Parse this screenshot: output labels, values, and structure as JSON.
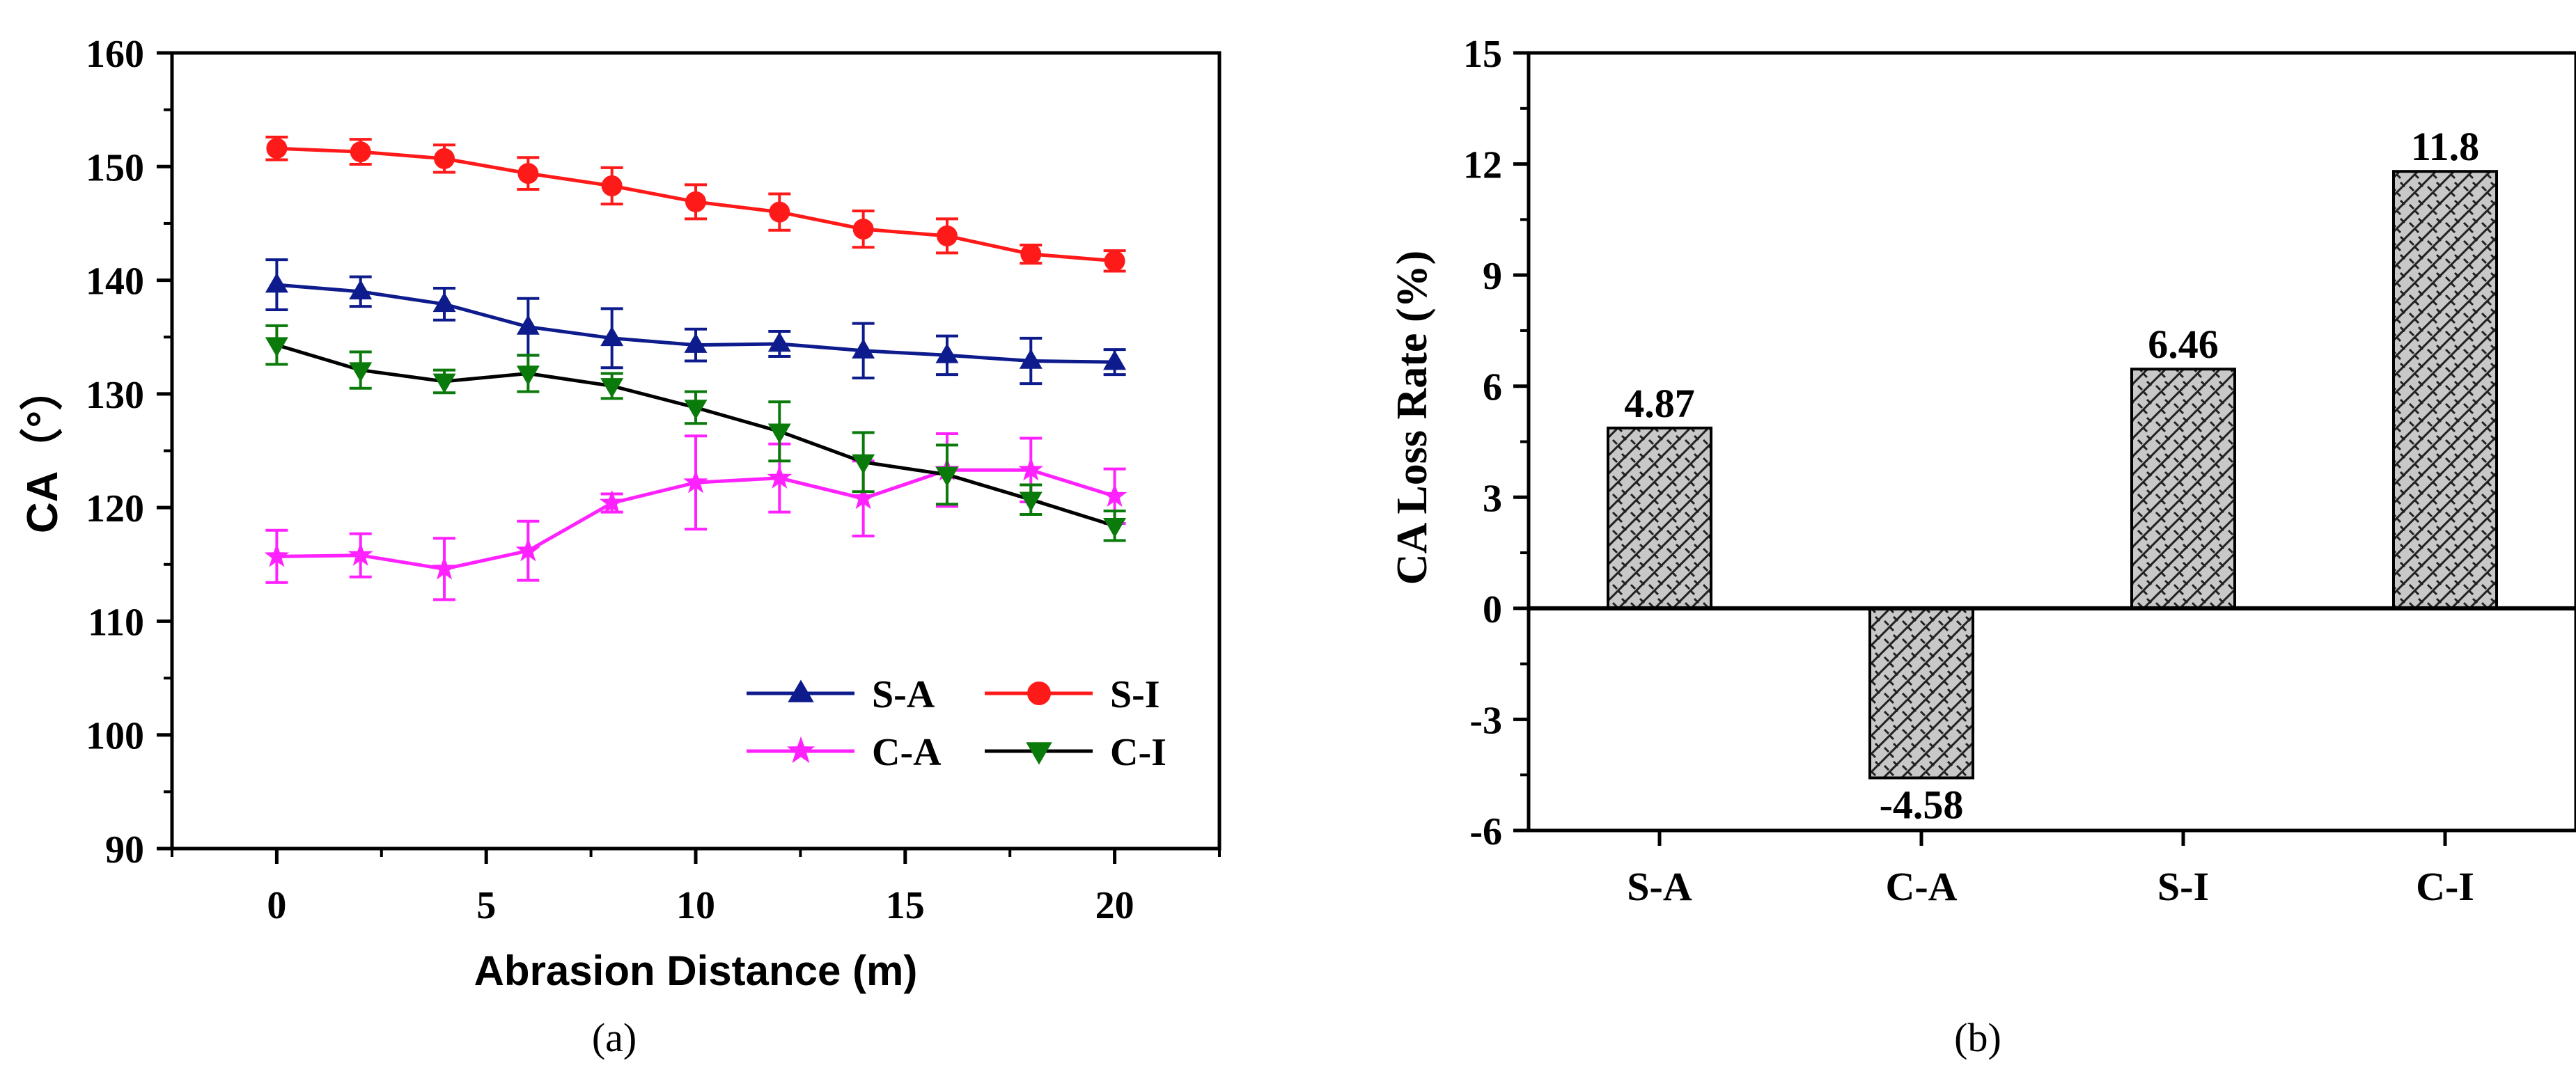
{
  "chart_data": [
    {
      "type": "line",
      "panel_label": "(a)",
      "xlabel": "Abrasion Distance (m)",
      "ylabel": "CA（°）",
      "xlim": [
        -2.5,
        22.5
      ],
      "ylim": [
        90,
        160
      ],
      "xticks": [
        0,
        5,
        10,
        15,
        20
      ],
      "yticks": [
        90,
        100,
        110,
        120,
        130,
        140,
        150,
        160
      ],
      "x": [
        0,
        2,
        4,
        6,
        8,
        10,
        12,
        14,
        16,
        18,
        20
      ],
      "series": [
        {
          "name": "S-A",
          "color": "#0d1b8c",
          "marker": "triangle-up",
          "values": [
            139.6,
            139.0,
            137.9,
            135.9,
            134.9,
            134.3,
            134.4,
            133.8,
            133.4,
            132.9,
            132.8
          ],
          "errors": [
            2.2,
            1.3,
            1.4,
            2.5,
            2.6,
            1.4,
            1.1,
            2.4,
            1.7,
            2.0,
            1.1
          ]
        },
        {
          "name": "S-I",
          "color": "#ff1a1a",
          "marker": "circle",
          "values": [
            151.6,
            151.3,
            150.7,
            149.4,
            148.3,
            146.9,
            146.0,
            144.5,
            143.9,
            142.3,
            141.7
          ],
          "errors": [
            1.0,
            1.1,
            1.2,
            1.4,
            1.6,
            1.5,
            1.6,
            1.6,
            1.5,
            0.8,
            0.9
          ]
        },
        {
          "name": "C-A",
          "color": "#ff22ff",
          "marker": "star",
          "values": [
            115.7,
            115.8,
            114.6,
            116.2,
            120.4,
            122.2,
            122.6,
            120.8,
            123.3,
            123.3,
            121.0
          ],
          "errors": [
            2.3,
            1.9,
            2.7,
            2.6,
            0.8,
            4.1,
            3.0,
            3.3,
            3.2,
            2.8,
            2.4
          ]
        },
        {
          "name": "C-I",
          "color": "#0a7a0a",
          "line_color": "#000000",
          "marker": "triangle-down",
          "values": [
            134.3,
            132.1,
            131.1,
            131.8,
            130.7,
            128.8,
            126.7,
            124.0,
            122.9,
            120.7,
            118.4
          ],
          "errors": [
            1.7,
            1.6,
            1.0,
            1.6,
            1.1,
            1.4,
            2.6,
            2.6,
            2.6,
            1.3,
            1.3
          ]
        }
      ],
      "legend": {
        "position": "bottom-right",
        "columns": 2
      }
    },
    {
      "type": "bar",
      "panel_label": "(b)",
      "ylabel": "CA Loss Rate (%)",
      "ylim": [
        -6,
        15
      ],
      "yticks": [
        -6,
        -3,
        0,
        3,
        6,
        9,
        12,
        15
      ],
      "ytick_labels": [
        "-6",
        "-3",
        "0",
        "3",
        "6",
        "9",
        "12",
        "15"
      ],
      "categories": [
        "S-A",
        "C-A",
        "S-I",
        "C-I"
      ],
      "values": [
        4.87,
        -4.58,
        6.46,
        11.8
      ],
      "value_labels": [
        "4.87",
        "-4.58",
        "6.46",
        "11.8"
      ],
      "bar_fill": "#c8c8c8",
      "pattern": "diagonal-crosshatch"
    }
  ]
}
